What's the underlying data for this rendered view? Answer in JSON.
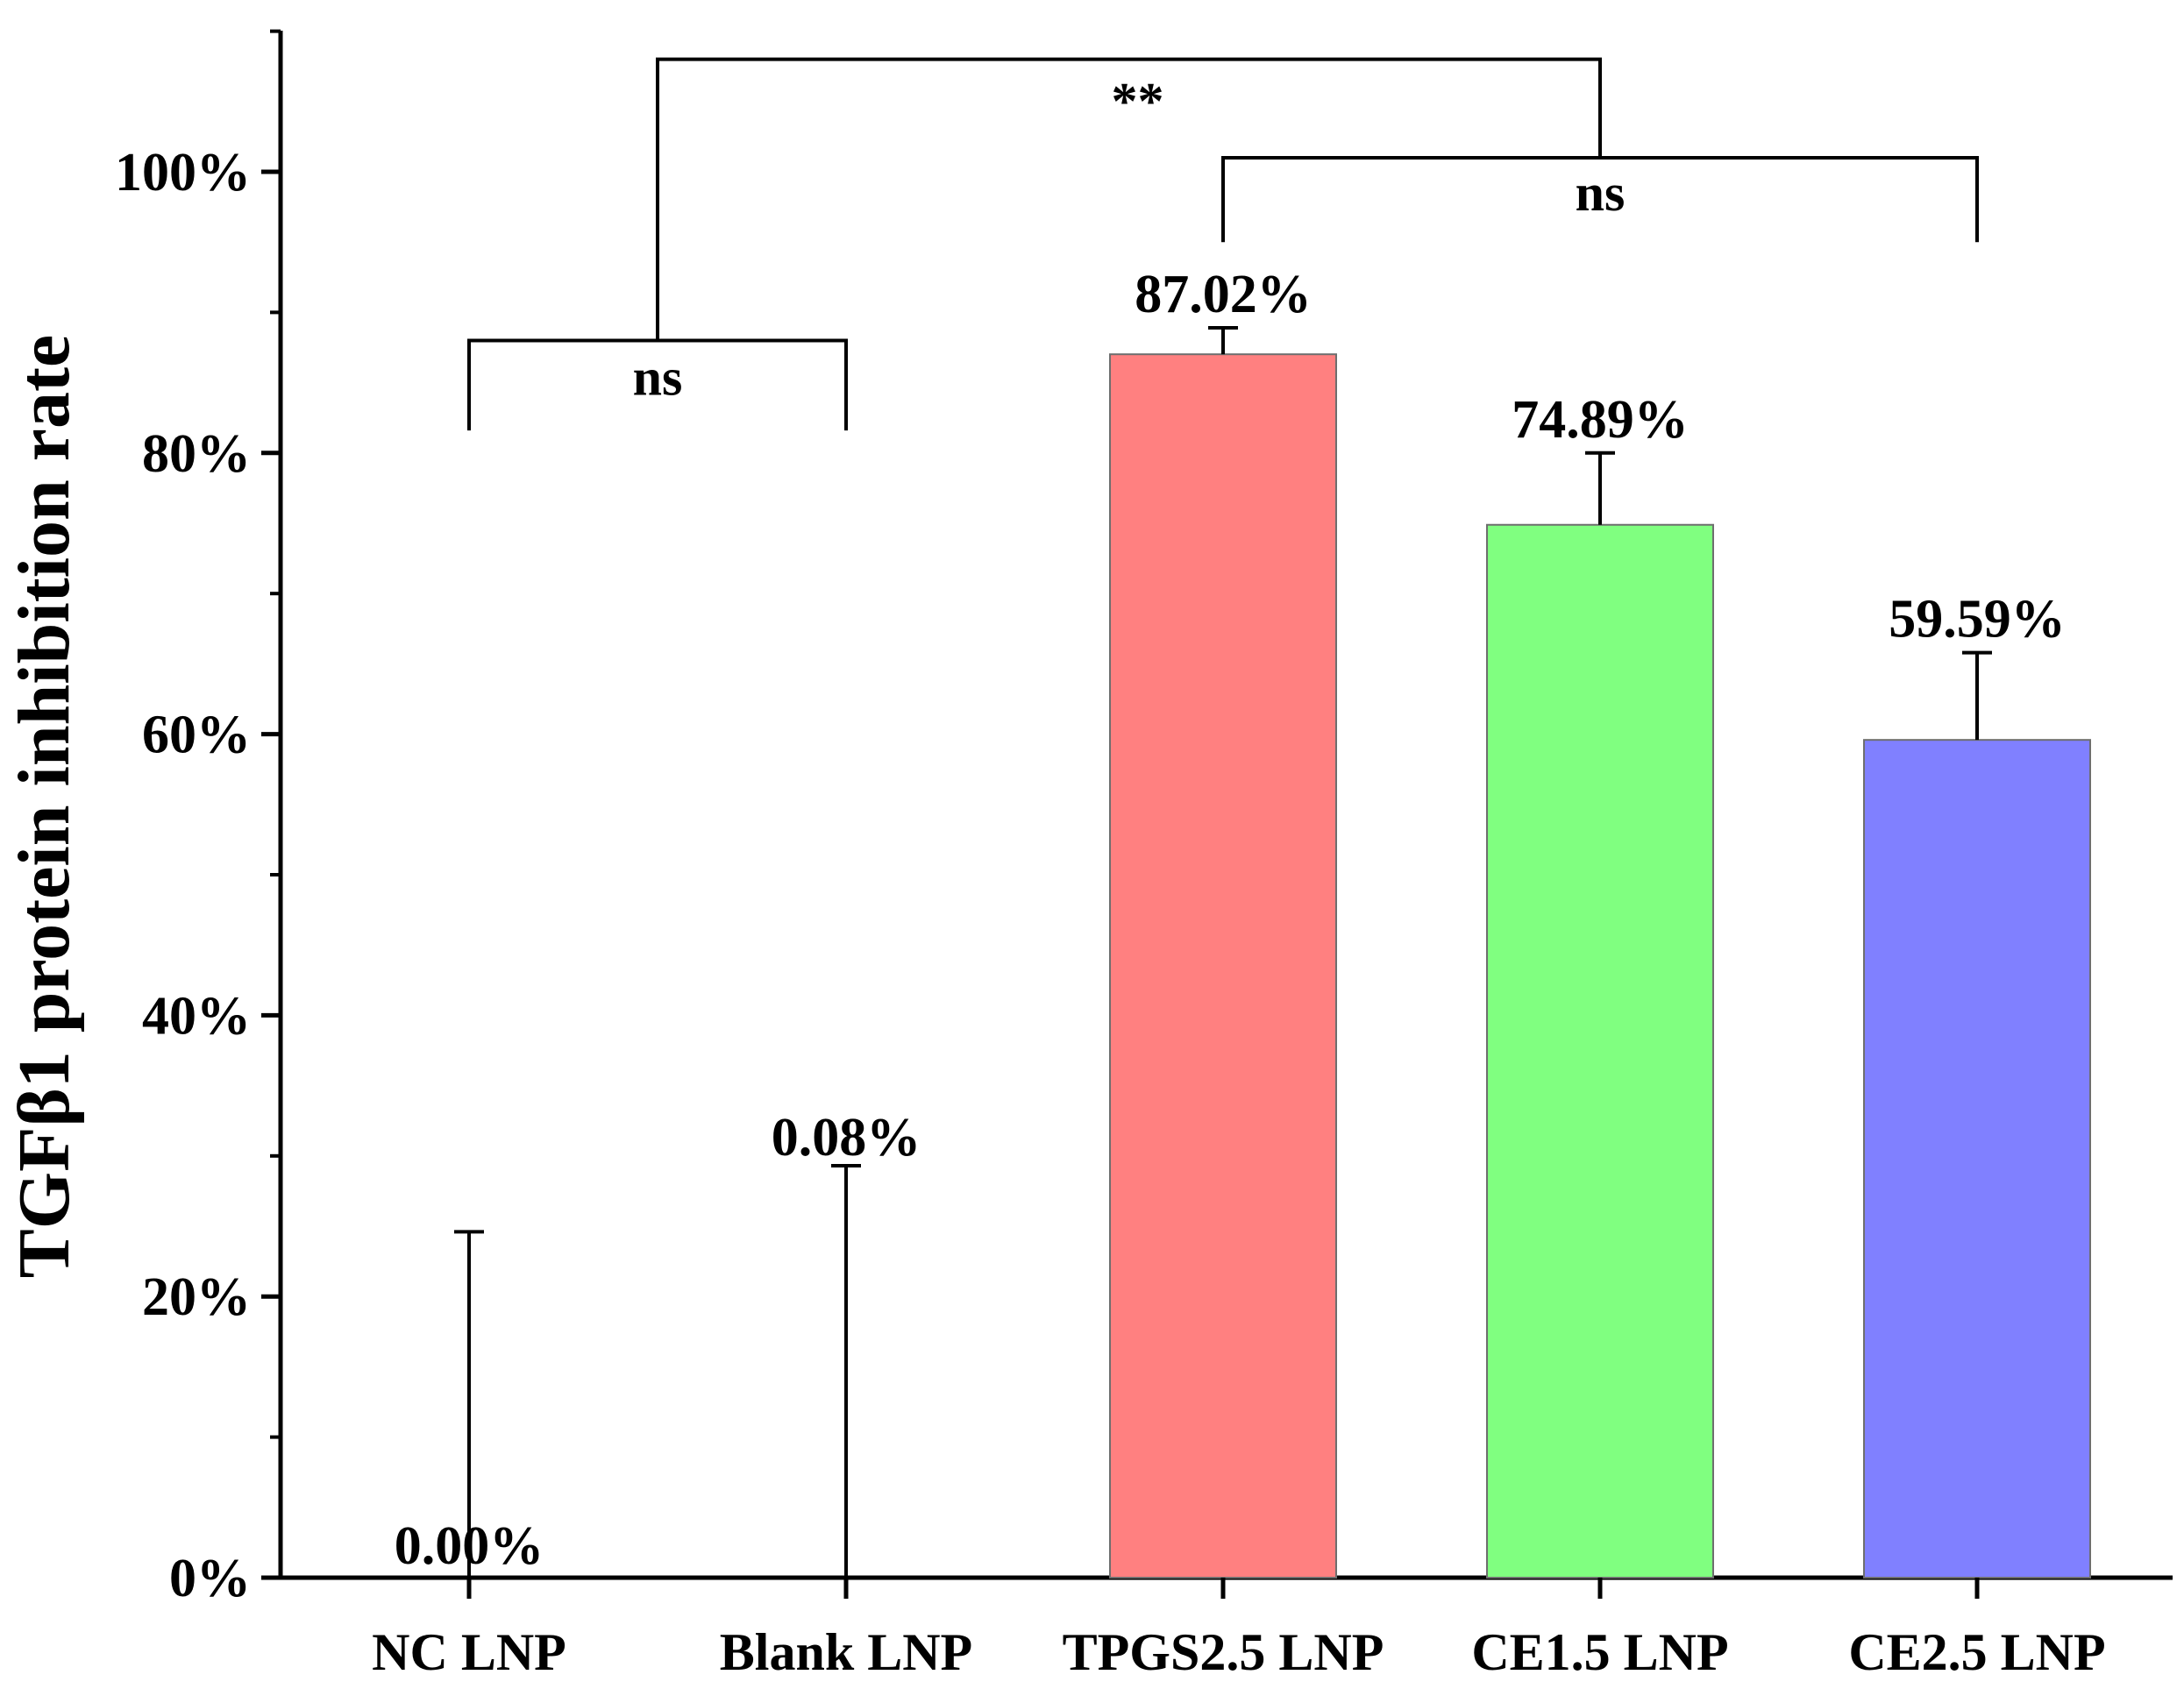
{
  "chart_data": {
    "type": "bar",
    "title": "",
    "xlabel": "",
    "ylabel": "TGFβ1 protein inhibition rate",
    "ylim": [
      0,
      110
    ],
    "grid": false,
    "yticks": [
      {
        "value": 0,
        "label": "0%"
      },
      {
        "value": 20,
        "label": "20%"
      },
      {
        "value": 40,
        "label": "40%"
      },
      {
        "value": 60,
        "label": "60%"
      },
      {
        "value": 80,
        "label": "80%"
      },
      {
        "value": 100,
        "label": "100%"
      }
    ],
    "categories": [
      "NC LNP",
      "Blank LNP",
      "TPGS2.5 LNP",
      "CE1.5 LNP",
      "CE2.5 LNP"
    ],
    "values": [
      0.0,
      0.08,
      87.02,
      74.89,
      59.59
    ],
    "error_upper": [
      24.6,
      29.3,
      88.9,
      80.0,
      65.8
    ],
    "value_labels": [
      "0.00%",
      "0.08%",
      "87.02%",
      "74.89%",
      "59.59%"
    ],
    "colors": [
      "#ffffff",
      "#ffffff",
      "#ff8080",
      "#80ff80",
      "#8080ff"
    ],
    "significance": [
      {
        "from": 0,
        "to": 1,
        "label": "ns",
        "bar_y": 88,
        "drop_to": 81.6
      },
      {
        "from": 2,
        "to": 4,
        "label": "ns",
        "bar_y": 101,
        "drop_to": 95
      },
      {
        "from": 0.5,
        "to": 3,
        "label": "**",
        "bar_y": 108,
        "drop_to": null
      }
    ]
  }
}
